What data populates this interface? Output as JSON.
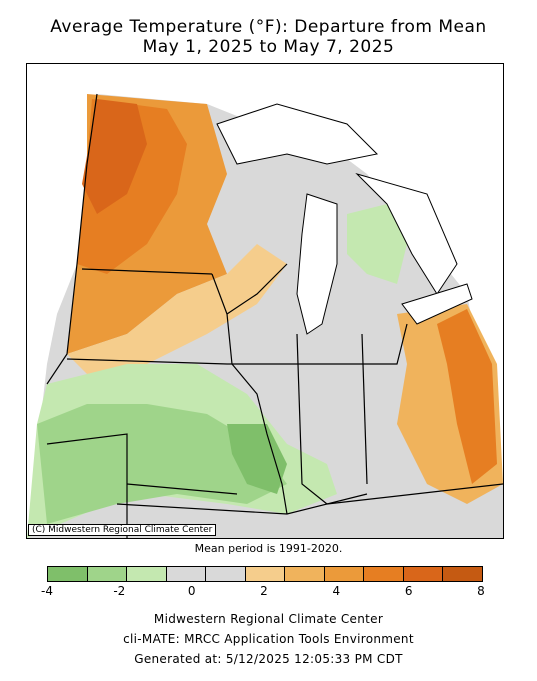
{
  "title_line1": "Average Temperature (°F): Departure from Mean",
  "title_line2": "May 1, 2025 to May 7, 2025",
  "copyright": "(C) Midwestern Regional Climate Center",
  "mean_note": "Mean period is 1991-2020.",
  "legend": {
    "colors": [
      "#7fbf6a",
      "#9fd48a",
      "#c4e8b0",
      "#d9d9d9",
      "#d9d9d9",
      "#f5cd8c",
      "#f0b35c",
      "#eb9a3a",
      "#e67e22",
      "#d9661a",
      "#c55a12"
    ],
    "ticks": [
      {
        "label": "-4",
        "value": -4
      },
      {
        "label": "-2",
        "value": -2
      },
      {
        "label": "0",
        "value": 0
      },
      {
        "label": "2",
        "value": 2
      },
      {
        "label": "4",
        "value": 4
      },
      {
        "label": "6",
        "value": 6
      },
      {
        "label": "8",
        "value": 8
      }
    ],
    "min": -4,
    "max": 8
  },
  "footer": {
    "line1": "Midwestern Regional Climate Center",
    "line2": "cli-MATE: MRCC Application Tools Environment",
    "line3": "Generated at: 5/12/2025 12:05:33 PM CDT"
  }
}
